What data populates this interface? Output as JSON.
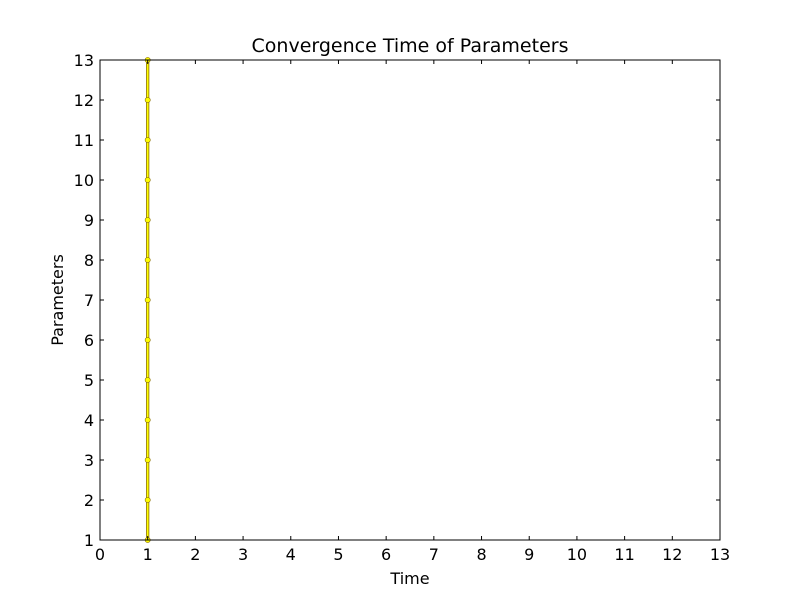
{
  "chart_data": {
    "type": "line",
    "title": "Convergence Time of Parameters",
    "xlabel": "Time",
    "ylabel": "Parameters",
    "xlim": [
      0,
      13
    ],
    "ylim": [
      1,
      13
    ],
    "xticks": [
      0,
      1,
      2,
      3,
      4,
      5,
      6,
      7,
      8,
      9,
      10,
      11,
      12,
      13
    ],
    "yticks": [
      1,
      2,
      3,
      4,
      5,
      6,
      7,
      8,
      9,
      10,
      11,
      12,
      13
    ],
    "grid": false,
    "series": [
      {
        "color": "#ffff00",
        "edge_color": "#8b6f00",
        "marker": "circle",
        "x": [
          1,
          1,
          1,
          1,
          1,
          1,
          1,
          1,
          1,
          1,
          1,
          1,
          1
        ],
        "y": [
          1,
          2,
          3,
          4,
          5,
          6,
          7,
          8,
          9,
          10,
          11,
          12,
          13
        ]
      }
    ]
  }
}
